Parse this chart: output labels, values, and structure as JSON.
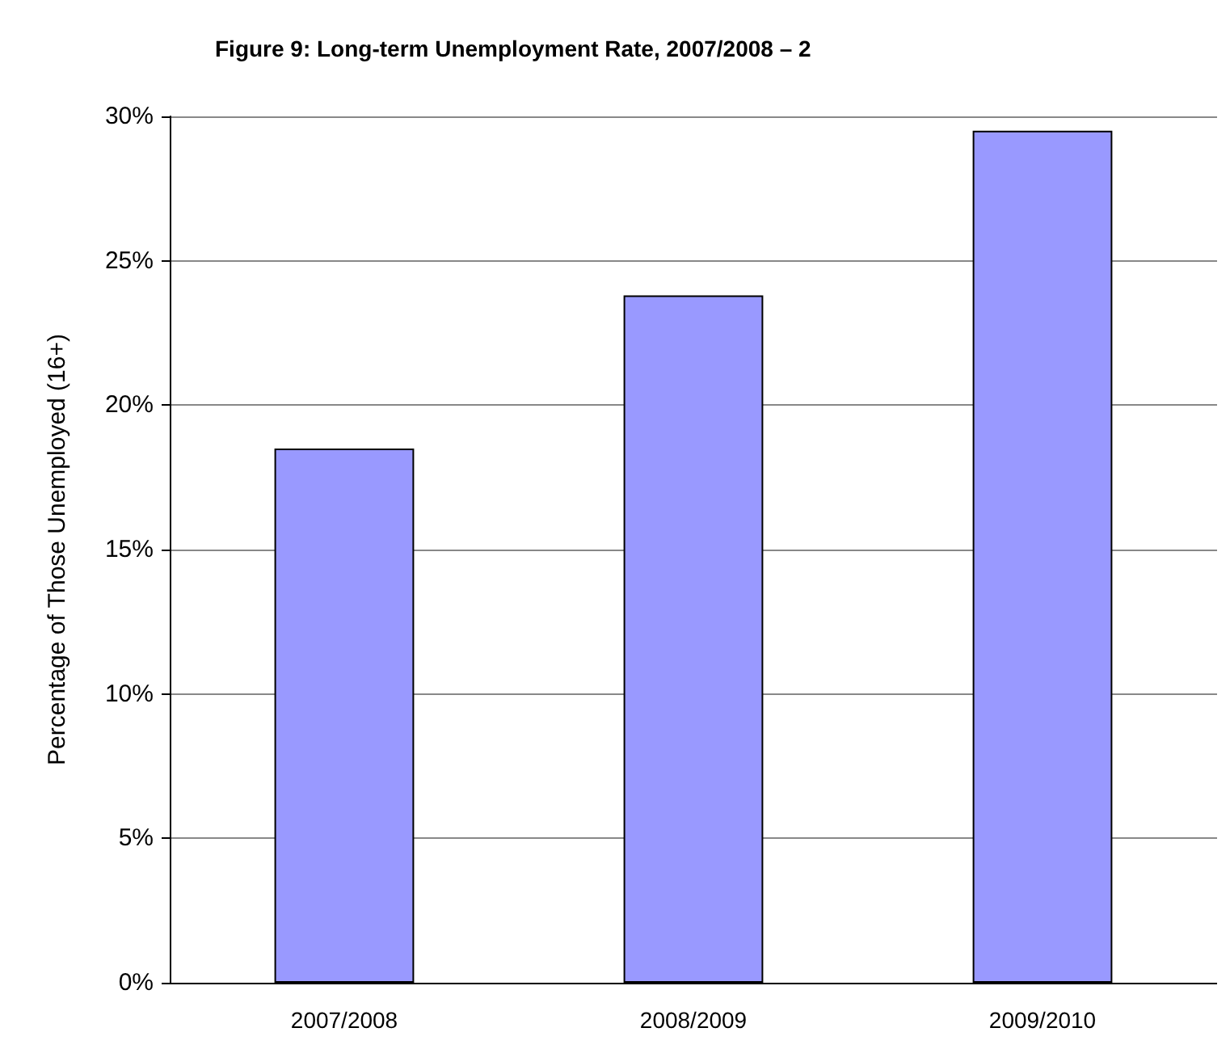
{
  "chart_data": {
    "type": "bar",
    "title": "Figure 9: Long-term Unemployment Rate, 2007/2008 – 2",
    "ylabel": "Percentage of Those Unemployed (16+)",
    "categories": [
      "2007/2008",
      "2008/2009",
      "2009/2010"
    ],
    "values": [
      18.5,
      23.8,
      29.5
    ],
    "color": "#9999ff",
    "ylim": [
      0,
      30
    ],
    "yticks": [
      {
        "value": 0,
        "label": "0%"
      },
      {
        "value": 5,
        "label": "5%"
      },
      {
        "value": 10,
        "label": "10%"
      },
      {
        "value": 15,
        "label": "15%"
      },
      {
        "value": 20,
        "label": "20%"
      },
      {
        "value": 25,
        "label": "25%"
      },
      {
        "value": 30,
        "label": "30%"
      }
    ],
    "grid": "y"
  }
}
